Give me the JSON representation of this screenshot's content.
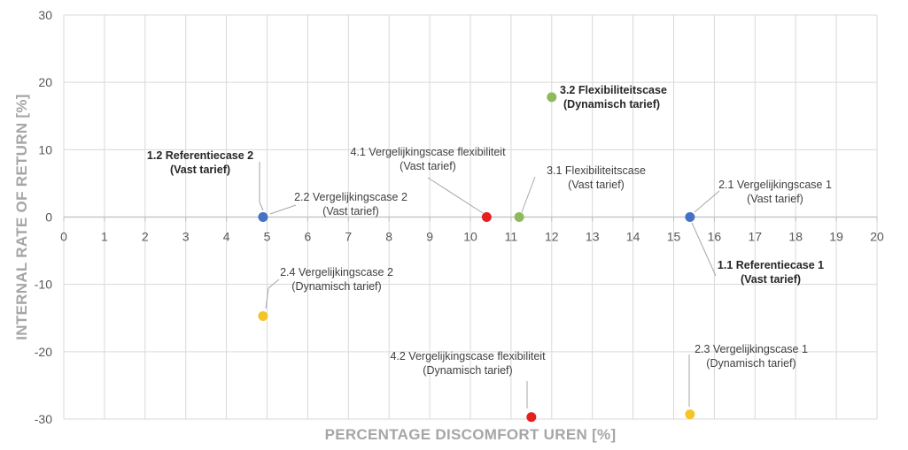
{
  "chart_data": {
    "type": "scatter",
    "xlabel": "PERCENTAGE DISCOMFORT UREN [%]",
    "ylabel": "INTERNAL RATE OF RETURN [%]",
    "xlim": [
      0,
      20
    ],
    "ylim": [
      -30,
      30
    ],
    "xticks": [
      "0",
      "1",
      "2",
      "3",
      "4",
      "5",
      "6",
      "7",
      "8",
      "9",
      "10",
      "11",
      "12",
      "13",
      "14",
      "15",
      "16",
      "17",
      "18",
      "19",
      "20"
    ],
    "yticks": [
      "30",
      "20",
      "10",
      "0",
      "-10",
      "-20",
      "-30"
    ],
    "grid": true,
    "points": [
      {
        "x": 4.9,
        "y": 0,
        "color": "#4472c4"
      },
      {
        "x": 15.4,
        "y": 0,
        "color": "#4472c4"
      },
      {
        "x": 10.4,
        "y": 0,
        "color": "#e5201f"
      },
      {
        "x": 11.2,
        "y": 0,
        "color": "#8fba5c"
      },
      {
        "x": 12.0,
        "y": 17.8,
        "color": "#8fba5c"
      },
      {
        "x": 4.9,
        "y": -14.7,
        "color": "#f5c526"
      },
      {
        "x": 11.5,
        "y": -29.7,
        "color": "#e5201f"
      },
      {
        "x": 15.4,
        "y": -29.3,
        "color": "#f5c526"
      }
    ],
    "annotations": [
      {
        "lines": [
          "1.2 Referentiecase 2",
          "(Vast tarief)"
        ],
        "bold": true
      },
      {
        "lines": [
          "2.2 Vergelijkingscase 2",
          "(Vast tarief)"
        ],
        "bold": false
      },
      {
        "lines": [
          "4.1 Vergelijkingscase flexibiliteit",
          "(Vast tarief)"
        ],
        "bold": false
      },
      {
        "lines": [
          "3.1 Flexibiliteitscase",
          "(Vast tarief)"
        ],
        "bold": false
      },
      {
        "lines": [
          "3.2 Flexibiliteitscase",
          "(Dynamisch tarief)"
        ],
        "bold": true
      },
      {
        "lines": [
          "2.1 Vergelijkingscase 1",
          "(Vast tarief)"
        ],
        "bold": false
      },
      {
        "lines": [
          "1.1 Referentiecase 1",
          "(Vast tarief)"
        ],
        "bold": true
      },
      {
        "lines": [
          "2.4 Vergelijkingscase 2",
          "(Dynamisch tarief)"
        ],
        "bold": false
      },
      {
        "lines": [
          "4.2 Vergelijkingscase flexibiliteit",
          "(Dynamisch tarief)"
        ],
        "bold": false
      },
      {
        "lines": [
          "2.3 Vergelijkingscase 1",
          "(Dynamisch tarief)"
        ],
        "bold": false
      }
    ]
  }
}
